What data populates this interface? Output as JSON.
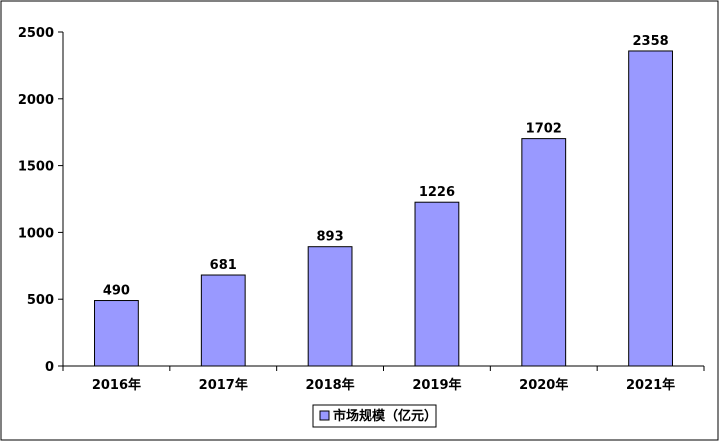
{
  "chart_data": {
    "type": "bar",
    "categories": [
      "2016年",
      "2017年",
      "2018年",
      "2019年",
      "2020年",
      "2021年"
    ],
    "series": [
      {
        "name": "市场规模（亿元）",
        "values": [
          490,
          681,
          893,
          1226,
          1702,
          2358
        ]
      }
    ],
    "ylim": [
      0,
      2500
    ],
    "yticks": [
      0,
      500,
      1000,
      1500,
      2000,
      2500
    ],
    "grid": false,
    "legend": "bottom",
    "colors": {
      "bar_fill": "#9999ff",
      "bar_stroke": "#000000"
    }
  }
}
